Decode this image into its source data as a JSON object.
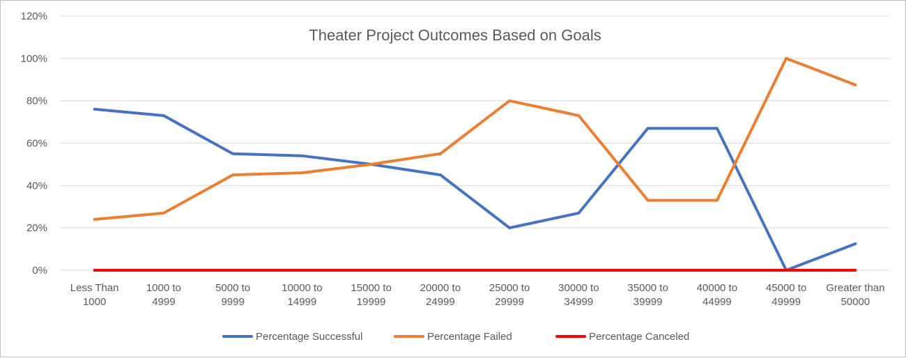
{
  "chart_data": {
    "type": "line",
    "title": "Theater Project Outcomes Based on Goals",
    "xlabel": "",
    "ylabel": "",
    "ylim": [
      0,
      1.2
    ],
    "y_tick_labels": [
      "0%",
      "20%",
      "40%",
      "60%",
      "80%",
      "100%",
      "120%"
    ],
    "y_tick_values": [
      0,
      0.2,
      0.4,
      0.6,
      0.8,
      1.0,
      1.2
    ],
    "grid": true,
    "legend_position": "bottom",
    "categories": [
      [
        "Less Than",
        "1000"
      ],
      [
        "1000 to",
        "4999"
      ],
      [
        "5000 to",
        "9999"
      ],
      [
        "10000 to",
        "14999"
      ],
      [
        "15000 to",
        "19999"
      ],
      [
        "20000 to",
        "24999"
      ],
      [
        "25000 to",
        "29999"
      ],
      [
        "30000 to",
        "34999"
      ],
      [
        "35000 to",
        "39999"
      ],
      [
        "40000 to",
        "44999"
      ],
      [
        "45000 to",
        "49999"
      ],
      [
        "Greater than",
        "50000"
      ]
    ],
    "series": [
      {
        "name": "Percentage Successful",
        "color": "#4472c4",
        "values": [
          0.76,
          0.73,
          0.55,
          0.54,
          0.5,
          0.45,
          0.2,
          0.27,
          0.67,
          0.67,
          0.0,
          0.125
        ]
      },
      {
        "name": "Percentage Failed",
        "color": "#ed7d31",
        "values": [
          0.24,
          0.27,
          0.45,
          0.46,
          0.5,
          0.55,
          0.8,
          0.73,
          0.33,
          0.33,
          1.0,
          0.875
        ]
      },
      {
        "name": "Percentage Canceled",
        "color": "#ff0000",
        "values": [
          0,
          0,
          0,
          0,
          0,
          0,
          0,
          0,
          0,
          0,
          0,
          0
        ]
      }
    ]
  }
}
